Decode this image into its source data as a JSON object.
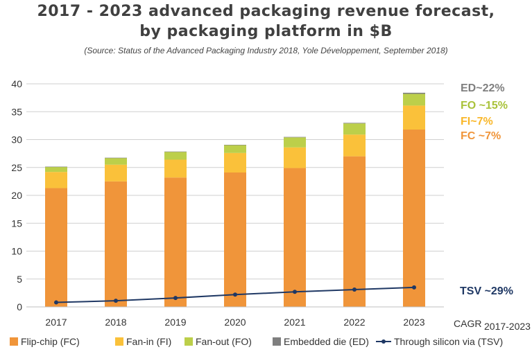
{
  "chart_data": {
    "type": "bar",
    "stacked": true,
    "title_line1": "2017 - 2023 advanced packaging revenue forecast,",
    "title_line2": "by packaging platform in $B",
    "subtitle": "(Source: Status of the Advanced Packaging Industry 2018, Yole Développement, September 2018)",
    "categories": [
      "2017",
      "2018",
      "2019",
      "2020",
      "2021",
      "2022",
      "2023"
    ],
    "ylim": [
      0,
      40
    ],
    "yticks": [
      0,
      5,
      10,
      15,
      20,
      25,
      30,
      35,
      40
    ],
    "ytick_labels": [
      "0",
      "5",
      "10",
      "15",
      "20",
      "25",
      "30",
      "35",
      "40"
    ],
    "grid": true,
    "series": [
      {
        "name": "Flip-chip (FC)",
        "color": "#F0953A",
        "values": [
          21.3,
          22.5,
          23.2,
          24.1,
          24.9,
          27.0,
          31.8
        ]
      },
      {
        "name": "Fan-in (FI)",
        "color": "#FAC13A",
        "values": [
          2.9,
          3.0,
          3.2,
          3.5,
          3.7,
          3.9,
          4.3
        ]
      },
      {
        "name": "Fan-out (FO)",
        "color": "#BCCF4A",
        "values": [
          0.9,
          1.2,
          1.4,
          1.4,
          1.8,
          2.0,
          2.1
        ]
      },
      {
        "name": "Embedded die (ED)",
        "color": "#7F7F7F",
        "values": [
          0.05,
          0.05,
          0.06,
          0.07,
          0.08,
          0.1,
          0.2
        ]
      }
    ],
    "line_series": {
      "name": "Through silicon via (TSV)",
      "color": "#1F3864",
      "values": [
        0.8,
        1.1,
        1.6,
        2.2,
        2.7,
        3.1,
        3.5
      ]
    },
    "cagr_annotations": [
      {
        "text": "ED~22%",
        "color": "#7F7F7F"
      },
      {
        "text": "FO ~15%",
        "color": "#A9C23A"
      },
      {
        "text": "FI~7%",
        "color": "#F9B72A"
      },
      {
        "text": "FC ~7%",
        "color": "#F0953A"
      }
    ],
    "tsv_annotation": {
      "text": "TSV ~29%",
      "color": "#1F3864"
    },
    "cagr_label_main": "CAGR",
    "cagr_label_sub": "2017-2023"
  }
}
